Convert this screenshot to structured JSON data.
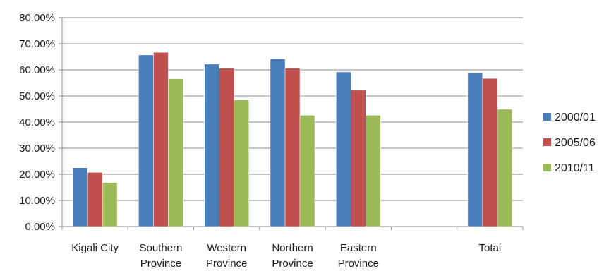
{
  "chart_data": {
    "type": "bar",
    "title": "",
    "xlabel": "",
    "ylabel": "",
    "ylim": [
      0,
      80
    ],
    "y_ticks": [
      "0.00%",
      "10.00%",
      "20.00%",
      "30.00%",
      "40.00%",
      "50.00%",
      "60.00%",
      "70.00%",
      "80.00%"
    ],
    "grid": true,
    "legend_position": "right",
    "categories": [
      [
        "Kigali City"
      ],
      [
        "Southern",
        "Province"
      ],
      [
        "Western",
        "Province"
      ],
      [
        "Northern",
        "Province"
      ],
      [
        "Eastern",
        "Province"
      ],
      [
        ""
      ],
      [
        "Total"
      ]
    ],
    "series": [
      {
        "name": "2000/01",
        "color": "#4a7ebb",
        "values": [
          22.5,
          65.7,
          62.2,
          64.2,
          59.2,
          null,
          58.8
        ]
      },
      {
        "name": "2005/06",
        "color": "#c0504d",
        "values": [
          20.7,
          66.7,
          60.6,
          60.6,
          52.2,
          null,
          56.7
        ]
      },
      {
        "name": "2010/11",
        "color": "#9bbb59",
        "values": [
          16.8,
          56.6,
          48.5,
          42.6,
          42.6,
          null,
          44.9
        ]
      }
    ]
  }
}
